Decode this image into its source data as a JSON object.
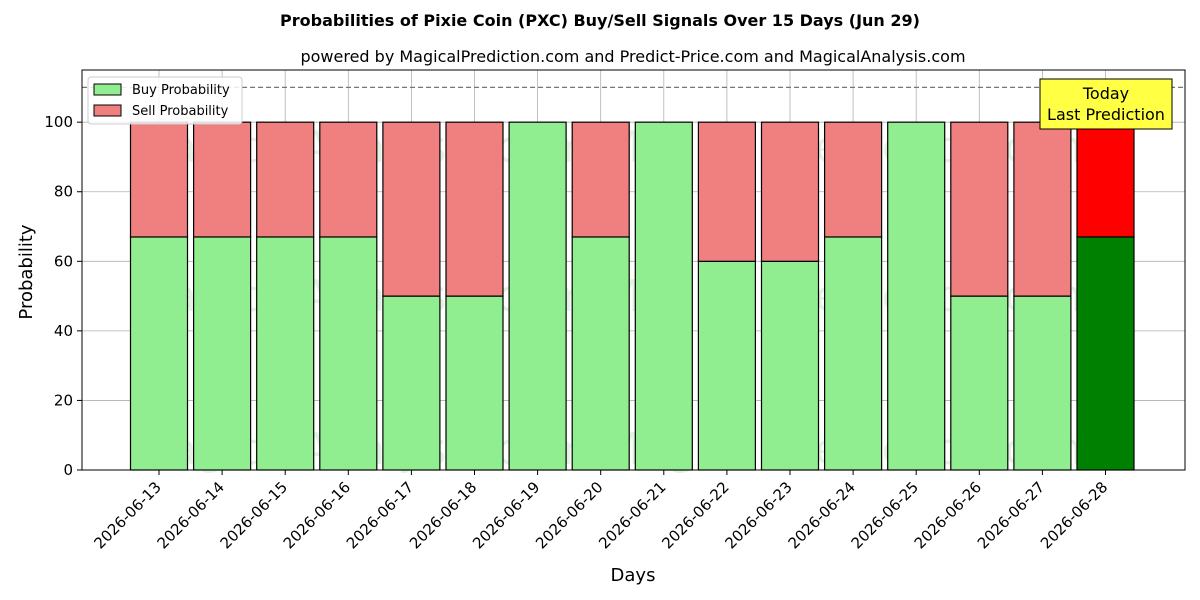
{
  "chart_data": {
    "type": "bar",
    "title": "Probabilities of Pixie Coin (PXC) Buy/Sell Signals Over 15 Days (Jun 29)",
    "subtitle": "powered by MagicalPrediction.com and Predict-Price.com and MagicalAnalysis.com",
    "xlabel": "Days",
    "ylabel": "Probability",
    "ylim": [
      0,
      115
    ],
    "yticks": [
      0,
      20,
      40,
      60,
      80,
      100
    ],
    "grid": true,
    "stacked": true,
    "legend_position": "top-left",
    "reference_line": 110,
    "categories": [
      "2026-06-13",
      "2026-06-14",
      "2026-06-15",
      "2026-06-16",
      "2026-06-17",
      "2026-06-18",
      "2026-06-19",
      "2026-06-20",
      "2026-06-21",
      "2026-06-22",
      "2026-06-23",
      "2026-06-24",
      "2026-06-25",
      "2026-06-26",
      "2026-06-27",
      "2026-06-28"
    ],
    "series": [
      {
        "name": "Buy Probability",
        "color": "#90ee90",
        "values": [
          67,
          67,
          67,
          67,
          50,
          50,
          100,
          67,
          100,
          60,
          60,
          67,
          100,
          50,
          50,
          67
        ]
      },
      {
        "name": "Sell Probability",
        "color": "#f08080",
        "values": [
          33,
          33,
          33,
          33,
          50,
          50,
          0,
          33,
          0,
          40,
          40,
          33,
          0,
          50,
          50,
          33
        ]
      }
    ],
    "highlight": {
      "index": 15,
      "buy_color": "#008000",
      "sell_color": "#ff0000"
    },
    "annotation": {
      "lines": [
        "Today",
        "Last Prediction"
      ],
      "background": "#ffff44"
    },
    "watermarks": [
      "MagicalAnalysis.com",
      "MagicalPrediction.com"
    ]
  }
}
